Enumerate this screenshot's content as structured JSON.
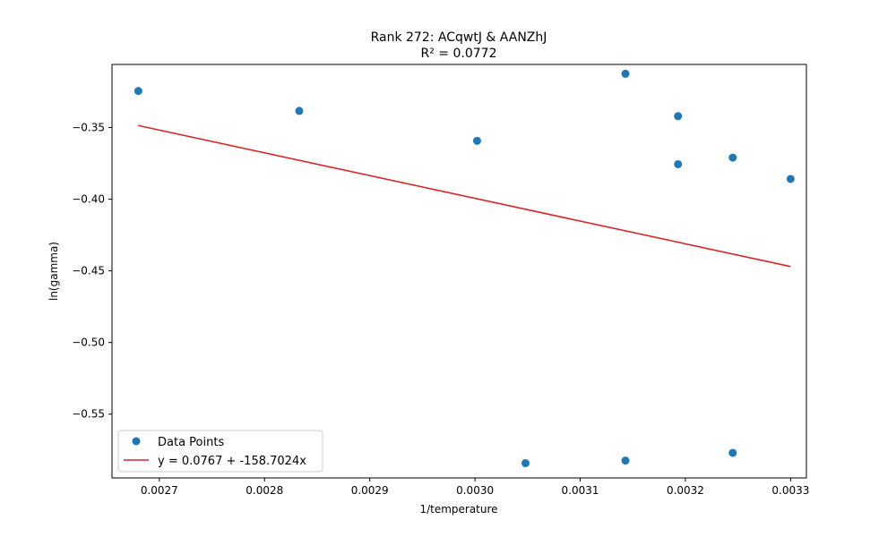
{
  "chart_data": {
    "type": "scatter",
    "title": "Rank 272: ACqwtJ & AANZhJ",
    "subtitle": "R² = 0.0772",
    "xlabel": "1/temperature",
    "ylabel": "ln(gamma)",
    "xlim": [
      0.002655,
      0.003315
    ],
    "ylim": [
      -0.5945,
      -0.306
    ],
    "x_ticks": [
      0.0027,
      0.0028,
      0.0029,
      0.003,
      0.0031,
      0.0032,
      0.0033
    ],
    "x_tick_labels": [
      "0.0027",
      "0.0028",
      "0.0029",
      "0.0030",
      "0.0031",
      "0.0032",
      "0.0033"
    ],
    "y_ticks": [
      -0.35,
      -0.4,
      -0.45,
      -0.5,
      -0.55
    ],
    "y_tick_labels": [
      "−0.35",
      "−0.40",
      "−0.45",
      "−0.50",
      "−0.55"
    ],
    "grid": false,
    "legend_position": "lower-left",
    "series": [
      {
        "name": "Data Points",
        "kind": "scatter",
        "color": "#1f77b4",
        "points": [
          {
            "x": 0.00268,
            "y": -0.3245
          },
          {
            "x": 0.002833,
            "y": -0.3384
          },
          {
            "x": 0.003002,
            "y": -0.3593
          },
          {
            "x": 0.003048,
            "y": -0.5842
          },
          {
            "x": 0.003143,
            "y": -0.3125
          },
          {
            "x": 0.003143,
            "y": -0.5824
          },
          {
            "x": 0.003193,
            "y": -0.3421
          },
          {
            "x": 0.003193,
            "y": -0.3756
          },
          {
            "x": 0.003245,
            "y": -0.371
          },
          {
            "x": 0.003245,
            "y": -0.577
          },
          {
            "x": 0.0033,
            "y": -0.3859
          }
        ]
      },
      {
        "name": "y = 0.0767 + -158.7024x",
        "kind": "fit-line",
        "color": "#d62728",
        "intercept": 0.0767,
        "slope": -158.7024,
        "x_range": [
          0.00268,
          0.0033
        ]
      }
    ]
  }
}
